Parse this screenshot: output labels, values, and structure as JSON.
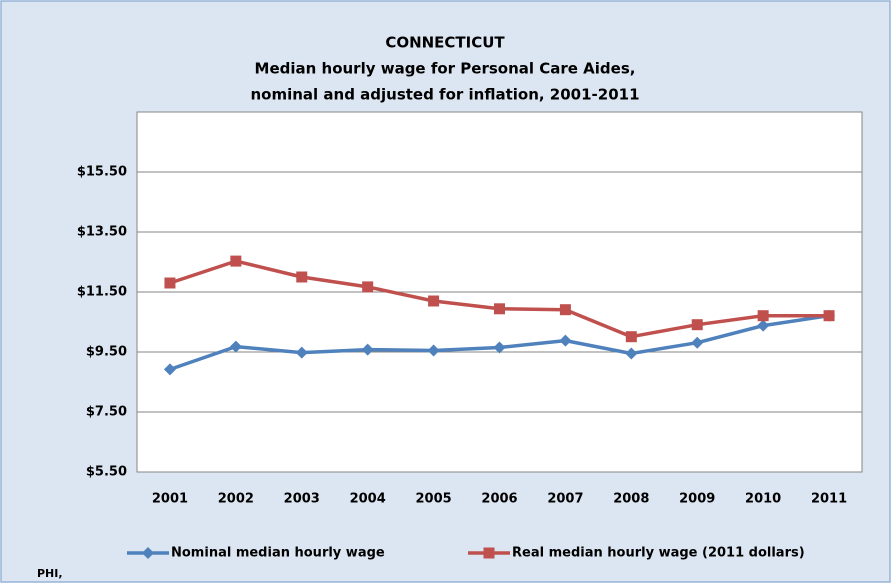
{
  "chart_data": {
    "type": "line",
    "title": "CONNECTICUT",
    "subtitle": [
      "Median hourly wage for Personal Care Aides,",
      "nominal and adjusted for inflation, 2001-2011"
    ],
    "categories": [
      "2001",
      "2002",
      "2003",
      "2004",
      "2005",
      "2006",
      "2007",
      "2008",
      "2009",
      "2010",
      "2011"
    ],
    "series": [
      {
        "name": "Nominal median hourly wage",
        "color": "#4f81bd",
        "marker": "diamond",
        "values": [
          8.92,
          9.68,
          9.48,
          9.58,
          9.55,
          9.65,
          9.88,
          9.45,
          9.81,
          10.38,
          10.71
        ]
      },
      {
        "name": "Real median hourly wage (2011 dollars)",
        "color": "#c0504d",
        "marker": "square",
        "values": [
          11.8,
          12.53,
          12.0,
          11.67,
          11.2,
          10.94,
          10.91,
          10.01,
          10.41,
          10.71,
          10.71
        ]
      }
    ],
    "ylim": [
      5.5,
      17.5
    ],
    "yticks": [
      {
        "value": 5.5,
        "label": "$5.50"
      },
      {
        "value": 7.5,
        "label": "$7.50"
      },
      {
        "value": 9.5,
        "label": "$9.50"
      },
      {
        "value": 11.5,
        "label": "$11.50"
      },
      {
        "value": 13.5,
        "label": "$13.50"
      },
      {
        "value": 15.5,
        "label": "$15.50"
      }
    ],
    "grid": true,
    "legend": "bottom",
    "source": "PHI,"
  }
}
